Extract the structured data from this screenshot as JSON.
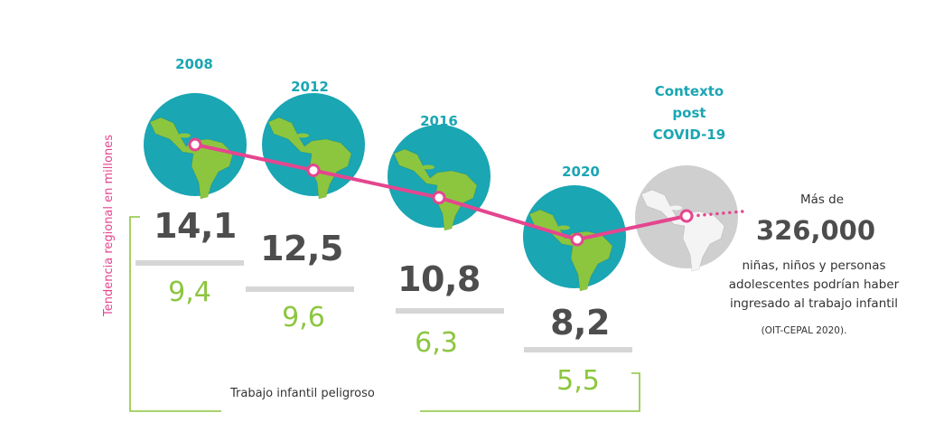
{
  "chart_data": {
    "type": "line",
    "title": "",
    "ylabel": "Tendencia regional en millones",
    "categories": [
      "2008",
      "2012",
      "2016",
      "2020"
    ],
    "series": [
      {
        "name": "Trabajo infantil",
        "values": [
          14.1,
          12.5,
          10.8,
          8.2
        ]
      },
      {
        "name": "Trabajo infantil peligroso",
        "values": [
          9.4,
          9.6,
          6.3,
          5.5
        ]
      }
    ],
    "value_labels": {
      "totals": [
        "14,1",
        "12,5",
        "10,8",
        "8,2"
      ],
      "hazardous": [
        "9,4",
        "9,6",
        "6,3",
        "5,5"
      ]
    },
    "bracket_label": "Trabajo infantil peligroso",
    "projection": {
      "label_lines": [
        "Contexto",
        "post",
        "COVID-19"
      ],
      "intro": "Más de",
      "value": "326,000",
      "text_lines": [
        "niñas, niños y personas",
        "adolescentes podrían haber",
        "ingresado al trabajo infantil"
      ],
      "source": "(OIT-CEPAL 2020)."
    },
    "colors": {
      "line": "#e4468f",
      "year_text": "#1aa6b3",
      "ocean": "#1aa6b3",
      "land": "#8cc63f",
      "total_text": "#4d4d4d",
      "hazard_text": "#8cc63f",
      "bracket": "#8cc63f",
      "covid_globe": "#cfcfcf"
    }
  }
}
